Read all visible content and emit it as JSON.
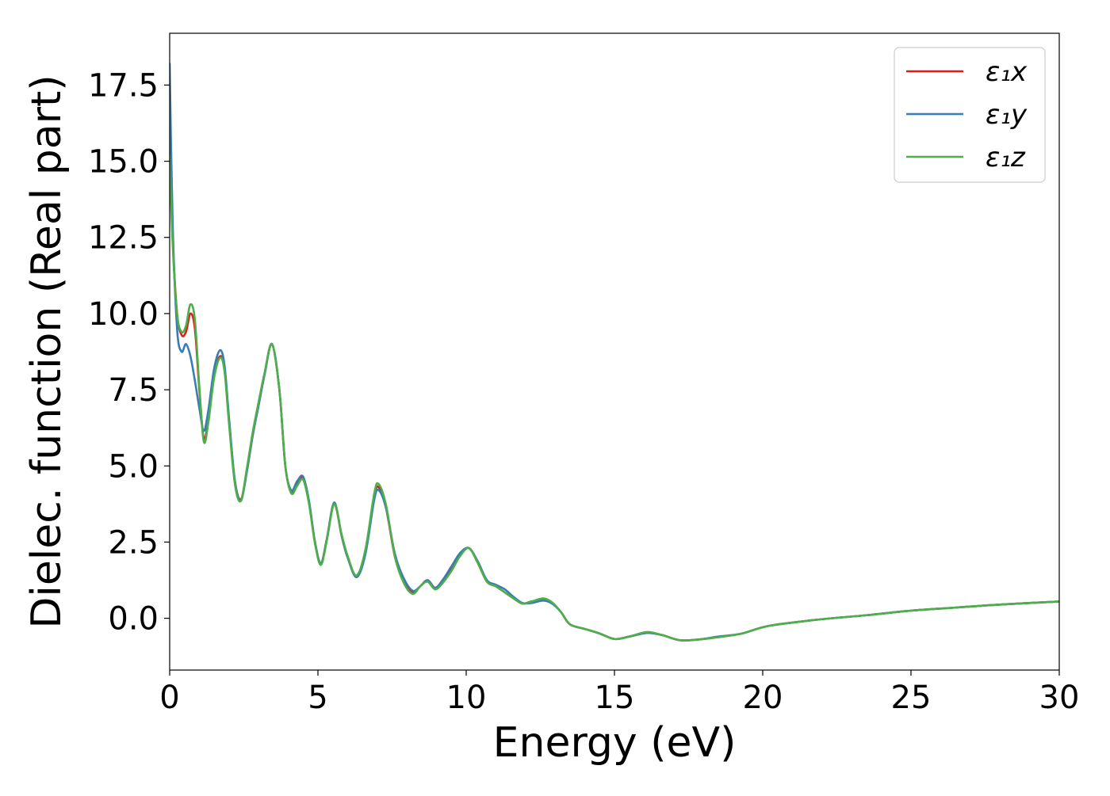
{
  "chart_data": {
    "type": "line",
    "xlabel": "Energy (eV)",
    "ylabel": "Dielec. function (Real part)",
    "xlim": [
      0,
      30
    ],
    "ylim": [
      -1.7,
      19.2
    ],
    "xticks": [
      0,
      5,
      10,
      15,
      20,
      25,
      30
    ],
    "xtick_labels": [
      "0",
      "5",
      "10",
      "15",
      "20",
      "25",
      "30"
    ],
    "yticks": [
      0.0,
      2.5,
      5.0,
      7.5,
      10.0,
      12.5,
      15.0,
      17.5
    ],
    "ytick_labels": [
      "0.0",
      "2.5",
      "5.0",
      "7.5",
      "10.0",
      "12.5",
      "15.0",
      "17.5"
    ],
    "grid": false,
    "legend_position": "top-right",
    "series": [
      {
        "name": "ε₁x",
        "color": "#e41a1c",
        "x": [
          0.0,
          0.1,
          0.25,
          0.4,
          0.55,
          0.7,
          0.85,
          1.0,
          1.15,
          1.3,
          1.5,
          1.7,
          1.85,
          2.0,
          2.2,
          2.4,
          2.6,
          2.8,
          3.0,
          3.2,
          3.45,
          3.7,
          3.9,
          4.1,
          4.3,
          4.5,
          4.7,
          4.9,
          5.1,
          5.3,
          5.55,
          5.8,
          6.0,
          6.3,
          6.6,
          6.9,
          7.05,
          7.3,
          7.6,
          7.9,
          8.2,
          8.45,
          8.7,
          8.95,
          9.2,
          9.5,
          9.8,
          10.1,
          10.4,
          10.7,
          11.0,
          11.3,
          11.6,
          11.9,
          12.2,
          12.6,
          12.9,
          13.2,
          13.5,
          14.0,
          14.5,
          15.0,
          15.5,
          16.1,
          16.6,
          17.2,
          17.8,
          18.5,
          19.3,
          20.2,
          21.8,
          23.5,
          25.0,
          26.5,
          28.0,
          30.0
        ],
        "y": [
          15.8,
          12.5,
          10.0,
          9.3,
          9.4,
          10.0,
          9.5,
          7.5,
          5.9,
          6.5,
          8.0,
          8.6,
          8.2,
          6.5,
          4.5,
          3.9,
          4.8,
          6.0,
          7.0,
          8.0,
          9.0,
          7.5,
          5.0,
          4.15,
          4.4,
          4.6,
          3.8,
          2.5,
          1.8,
          2.6,
          3.75,
          2.7,
          2.0,
          1.4,
          2.2,
          4.0,
          4.3,
          3.6,
          2.0,
          1.2,
          0.85,
          1.05,
          1.25,
          1.0,
          1.2,
          1.6,
          2.1,
          2.3,
          1.8,
          1.2,
          1.05,
          0.85,
          0.65,
          0.48,
          0.55,
          0.6,
          0.5,
          0.2,
          -0.2,
          -0.35,
          -0.5,
          -0.68,
          -0.6,
          -0.48,
          -0.55,
          -0.72,
          -0.7,
          -0.62,
          -0.5,
          -0.25,
          -0.05,
          0.1,
          0.25,
          0.35,
          0.45,
          0.55
        ]
      },
      {
        "name": "ε₁y",
        "color": "#377eb8",
        "x": [
          0.0,
          0.1,
          0.25,
          0.4,
          0.55,
          0.7,
          0.85,
          1.0,
          1.15,
          1.3,
          1.5,
          1.7,
          1.85,
          2.0,
          2.2,
          2.4,
          2.6,
          2.8,
          3.0,
          3.2,
          3.45,
          3.7,
          3.9,
          4.1,
          4.3,
          4.5,
          4.7,
          4.9,
          5.1,
          5.3,
          5.55,
          5.8,
          6.0,
          6.3,
          6.6,
          6.9,
          7.05,
          7.3,
          7.6,
          7.9,
          8.2,
          8.45,
          8.7,
          8.95,
          9.2,
          9.5,
          9.8,
          10.1,
          10.4,
          10.7,
          11.0,
          11.3,
          11.6,
          11.9,
          12.2,
          12.6,
          12.9,
          13.2,
          13.5,
          14.0,
          14.5,
          15.0,
          15.5,
          16.1,
          16.6,
          17.2,
          17.8,
          18.5,
          19.3,
          20.2,
          21.8,
          23.5,
          25.0,
          26.5,
          28.0,
          30.0
        ],
        "y": [
          18.2,
          13.0,
          9.5,
          8.75,
          9.0,
          8.6,
          7.8,
          6.9,
          6.15,
          6.8,
          8.2,
          8.8,
          8.3,
          6.6,
          4.5,
          3.85,
          4.8,
          6.0,
          7.0,
          8.0,
          9.0,
          7.5,
          5.0,
          4.2,
          4.5,
          4.65,
          3.85,
          2.5,
          1.8,
          2.6,
          3.8,
          2.7,
          2.0,
          1.35,
          2.1,
          3.9,
          4.2,
          3.6,
          2.1,
          1.3,
          0.9,
          1.05,
          1.25,
          1.0,
          1.25,
          1.7,
          2.15,
          2.3,
          1.85,
          1.25,
          1.1,
          0.95,
          0.7,
          0.5,
          0.5,
          0.58,
          0.48,
          0.2,
          -0.2,
          -0.35,
          -0.5,
          -0.68,
          -0.6,
          -0.48,
          -0.55,
          -0.72,
          -0.7,
          -0.6,
          -0.5,
          -0.25,
          -0.05,
          0.1,
          0.25,
          0.35,
          0.45,
          0.55
        ]
      },
      {
        "name": "ε₁z",
        "color": "#4daf4a",
        "x": [
          0.0,
          0.1,
          0.25,
          0.4,
          0.55,
          0.7,
          0.85,
          1.0,
          1.15,
          1.3,
          1.5,
          1.7,
          1.85,
          2.0,
          2.2,
          2.4,
          2.6,
          2.8,
          3.0,
          3.2,
          3.45,
          3.7,
          3.9,
          4.1,
          4.3,
          4.5,
          4.7,
          4.9,
          5.1,
          5.3,
          5.55,
          5.8,
          6.0,
          6.3,
          6.6,
          6.9,
          7.05,
          7.3,
          7.6,
          7.9,
          8.2,
          8.45,
          8.7,
          8.95,
          9.2,
          9.5,
          9.8,
          10.1,
          10.4,
          10.7,
          11.0,
          11.3,
          11.6,
          11.9,
          12.2,
          12.6,
          12.9,
          13.2,
          13.5,
          14.0,
          14.5,
          15.0,
          15.5,
          16.1,
          16.6,
          17.2,
          17.8,
          18.5,
          19.3,
          20.2,
          21.8,
          23.5,
          25.0,
          26.5,
          28.0,
          30.0
        ],
        "y": [
          15.2,
          12.3,
          10.0,
          9.4,
          9.6,
          10.3,
          9.8,
          7.6,
          5.8,
          6.4,
          7.9,
          8.55,
          8.1,
          6.4,
          4.4,
          3.85,
          4.9,
          6.1,
          7.1,
          8.05,
          9.0,
          7.5,
          5.0,
          4.1,
          4.35,
          4.55,
          3.75,
          2.45,
          1.75,
          2.55,
          3.75,
          2.75,
          2.05,
          1.4,
          2.25,
          4.1,
          4.4,
          3.7,
          2.0,
          1.15,
          0.8,
          1.05,
          1.2,
          0.95,
          1.15,
          1.55,
          2.05,
          2.3,
          1.8,
          1.2,
          1.05,
          0.85,
          0.65,
          0.48,
          0.55,
          0.65,
          0.52,
          0.2,
          -0.2,
          -0.35,
          -0.5,
          -0.68,
          -0.6,
          -0.45,
          -0.55,
          -0.72,
          -0.7,
          -0.62,
          -0.5,
          -0.25,
          -0.05,
          0.1,
          0.25,
          0.35,
          0.45,
          0.55
        ]
      }
    ]
  }
}
